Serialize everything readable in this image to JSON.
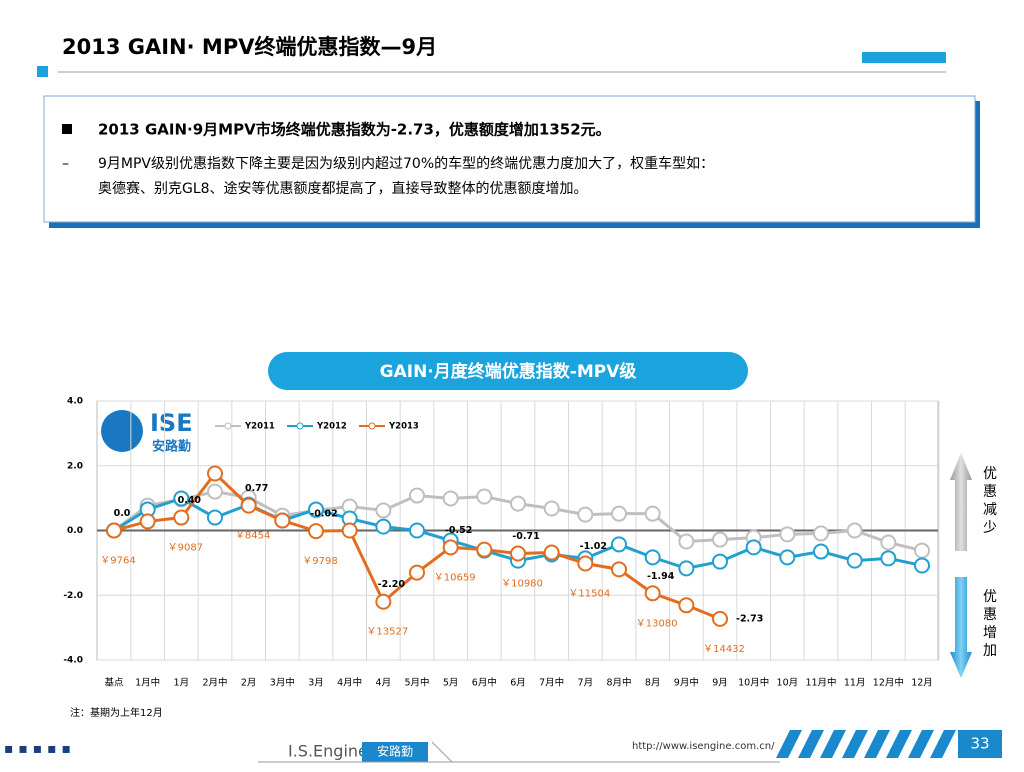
{
  "header": {
    "title": "2013 GAIN· MPV终端优惠指数—9月"
  },
  "summary": {
    "bullet": "2013 GAIN·9月MPV市场终端优惠指数为-2.73，优惠额度增加1352元。",
    "lines": [
      "9月MPV级别优惠指数下降主要是因为级别内超过70%的车型的终端优惠力度加大了，权重车型如：",
      "奥德赛、别克GL8、途安等优惠额度都提高了，直接导致整体的优惠额度增加。"
    ]
  },
  "logo": {
    "mark": "ISE",
    "text": "安路勤"
  },
  "chart_data": {
    "type": "line",
    "title": "GAIN·月度终端优惠指数-MPV级",
    "categories": [
      "基点",
      "1月中",
      "1月",
      "2月中",
      "2月",
      "3月中",
      "3月",
      "4月中",
      "4月",
      "5月中",
      "5月",
      "6月中",
      "6月",
      "7月中",
      "7月",
      "8月中",
      "8月",
      "9月中",
      "9月",
      "10月中",
      "10月",
      "11月中",
      "11月",
      "12月中",
      "12月"
    ],
    "series": [
      {
        "name": "Y2011",
        "color": "#bfbfbf",
        "values": [
          0,
          0.77,
          0.96,
          1.2,
          1.02,
          0.46,
          0.62,
          0.74,
          0.62,
          1.08,
          0.99,
          1.05,
          0.83,
          0.68,
          0.49,
          0.52,
          0.52,
          -0.34,
          -0.28,
          -0.22,
          -0.12,
          -0.09,
          0,
          -0.37,
          -0.62
        ]
      },
      {
        "name": "Y2012",
        "color": "#1fa0d0",
        "values": [
          0,
          0.65,
          0.99,
          0.4,
          0.8,
          0.31,
          0.65,
          0.37,
          0.12,
          0,
          -0.31,
          -0.62,
          -0.93,
          -0.74,
          -0.86,
          -0.43,
          -0.83,
          -1.17,
          -0.96,
          -0.52,
          -0.83,
          -0.65,
          -0.93,
          -0.86,
          -1.08
        ]
      },
      {
        "name": "Y2013",
        "color": "#e36c1e",
        "values": [
          0,
          0.28,
          0.4,
          1.76,
          0.77,
          0.31,
          -0.02,
          0,
          -2.2,
          -1.3,
          -0.52,
          -0.59,
          -0.71,
          -0.68,
          -1.02,
          -1.2,
          -1.94,
          -2.31,
          -2.73,
          null,
          null,
          null,
          null,
          null,
          null
        ],
        "value_labels": [
          "0.0",
          null,
          "0.40",
          null,
          "0.77",
          null,
          "-0.02",
          null,
          "-2.20",
          null,
          "-0.52",
          null,
          "-0.71",
          null,
          "-1.02",
          null,
          "-1.94",
          null,
          "-2.73",
          null,
          null,
          null,
          null,
          null,
          null
        ]
      }
    ],
    "ylim": [
      -4,
      4
    ],
    "yticks": [
      {
        "value": -4,
        "label": "-4.0"
      },
      {
        "value": -2,
        "label": "-2.0"
      },
      {
        "value": 0,
        "label": "0.0"
      },
      {
        "value": 2,
        "label": "2.0"
      },
      {
        "value": 4,
        "label": "4.0"
      }
    ],
    "grid": true,
    "annotations": [
      {
        "text": "￥9764",
        "category": "基点"
      },
      {
        "text": "￥9087",
        "category": "1月"
      },
      {
        "text": "￥8454",
        "category": "2月"
      },
      {
        "text": "￥9798",
        "category": "3月"
      },
      {
        "text": "￥13527",
        "category": "4月"
      },
      {
        "text": "￥10659",
        "category": "5月"
      },
      {
        "text": "￥10980",
        "category": "6月"
      },
      {
        "text": "￥11504",
        "category": "7月"
      },
      {
        "text": "￥13080",
        "category": "8月"
      },
      {
        "text": "￥14432",
        "category": "9月"
      }
    ],
    "arrow_up": "优惠减少",
    "arrow_down": "优惠增加",
    "note": "注：基期为上年12月"
  },
  "footer": {
    "brand": "I.S.Engine",
    "brand_cn": "安路勤",
    "url": "http://www.isengine.com.cn/",
    "page": "33"
  }
}
